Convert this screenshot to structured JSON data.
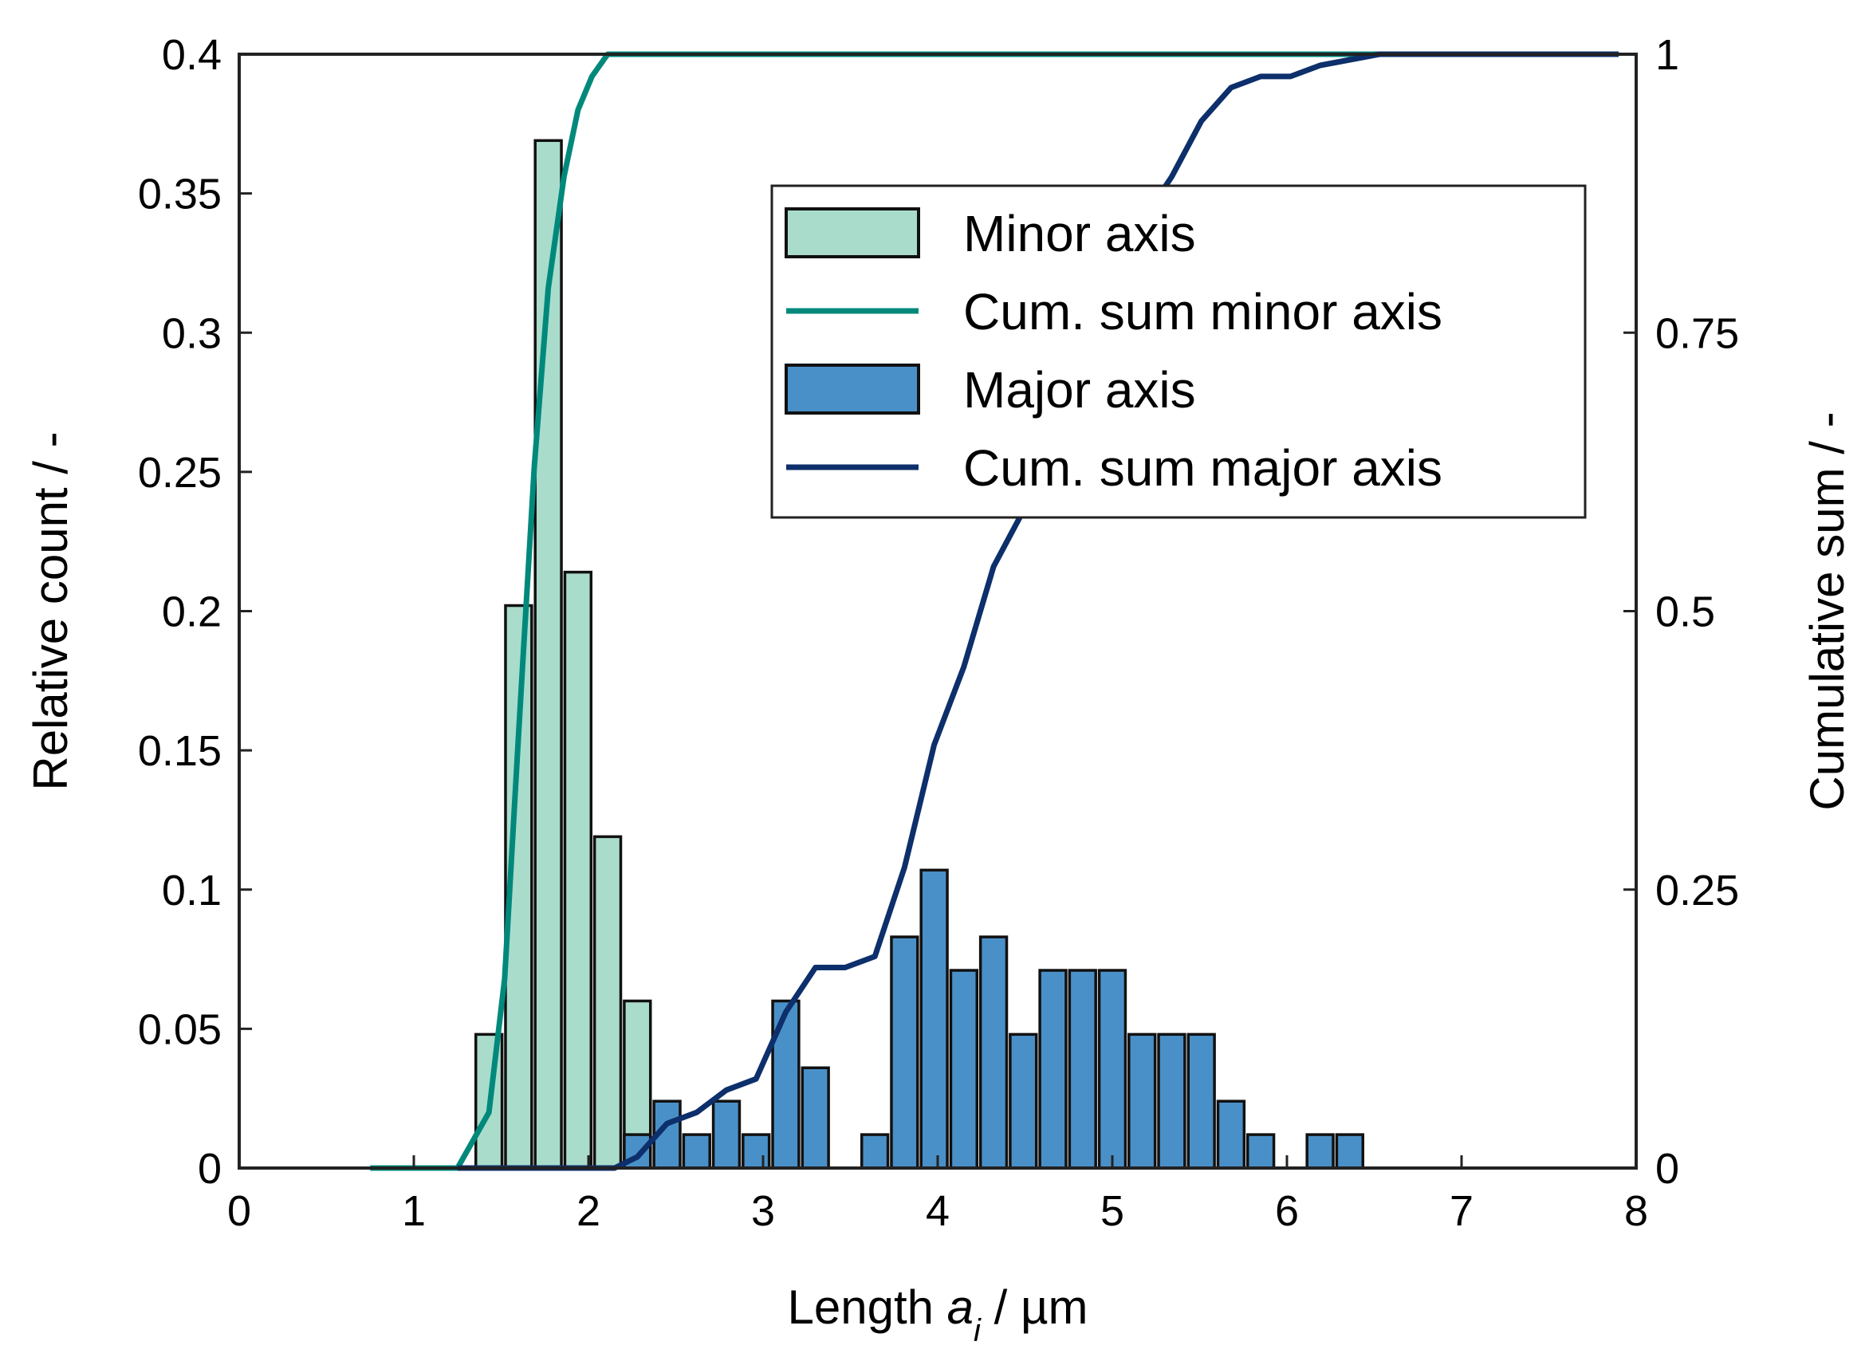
{
  "chart_data": {
    "type": "bar",
    "xlabel": "Length a_i / µm",
    "xlabel_parts": {
      "prefix": "Length ",
      "var": "a",
      "sub": "i",
      "suffix": " / µm"
    },
    "ylabel_left": "Relative count / -",
    "ylabel_right": "Cumulative sum / -",
    "xlim": [
      0,
      8
    ],
    "ylim_left": [
      0,
      0.4
    ],
    "ylim_right": [
      0,
      1
    ],
    "x_ticks": [
      "0",
      "1",
      "2",
      "3",
      "4",
      "5",
      "6",
      "7",
      "8"
    ],
    "y_ticks_left": [
      "0",
      "0.05",
      "0.1",
      "0.15",
      "0.2",
      "0.25",
      "0.3",
      "0.35",
      "0.4"
    ],
    "y_ticks_right": [
      "0",
      "0.25",
      "0.5",
      "0.75",
      "1"
    ],
    "bar_width": 0.15,
    "grid": false,
    "legend_position": "upper-right-inside",
    "series": [
      {
        "name": "Minor axis",
        "kind": "bar",
        "color": "#aadccc",
        "x": [
          1.43,
          1.6,
          1.77,
          1.94,
          2.11,
          2.28
        ],
        "values": [
          0.048,
          0.202,
          0.369,
          0.214,
          0.119,
          0.06
        ]
      },
      {
        "name": "Cum. sum minor axis",
        "kind": "line",
        "color": "#00897b",
        "x": [
          0.75,
          1.0,
          1.25,
          1.43,
          1.52,
          1.6,
          1.69,
          1.77,
          1.86,
          1.94,
          2.02,
          2.11,
          2.2,
          2.28,
          2.5,
          3.0,
          4.0,
          5.0,
          6.0,
          7.0,
          7.9
        ],
        "values": [
          0,
          0,
          0,
          0.05,
          0.17,
          0.39,
          0.63,
          0.79,
          0.89,
          0.95,
          0.98,
          1.0,
          1.0,
          1.0,
          1.0,
          1.0,
          1.0,
          1.0,
          1.0,
          1.0,
          1.0
        ]
      },
      {
        "name": "Major axis",
        "kind": "bar",
        "color": "#4a90c8",
        "x": [
          2.28,
          2.45,
          2.62,
          2.79,
          2.96,
          3.13,
          3.3,
          3.64,
          3.81,
          3.98,
          4.15,
          4.32,
          4.49,
          4.66,
          4.83,
          5.0,
          5.17,
          5.34,
          5.51,
          5.68,
          5.85,
          6.19,
          6.36
        ],
        "values": [
          0.012,
          0.024,
          0.012,
          0.024,
          0.012,
          0.06,
          0.036,
          0.012,
          0.083,
          0.107,
          0.071,
          0.083,
          0.048,
          0.071,
          0.071,
          0.071,
          0.048,
          0.048,
          0.048,
          0.024,
          0.012,
          0.012,
          0.012
        ]
      },
      {
        "name": "Cum. sum major axis",
        "kind": "line",
        "color": "#0d2f6b",
        "x": [
          1.25,
          1.5,
          1.75,
          2.0,
          2.15,
          2.28,
          2.45,
          2.62,
          2.79,
          2.96,
          3.13,
          3.3,
          3.47,
          3.64,
          3.81,
          3.98,
          4.15,
          4.32,
          4.49,
          4.66,
          4.83,
          5.0,
          5.17,
          5.34,
          5.51,
          5.68,
          5.85,
          6.02,
          6.19,
          6.36,
          6.53,
          7.0,
          7.9
        ],
        "values": [
          0,
          0,
          0,
          0,
          0,
          0.01,
          0.04,
          0.05,
          0.07,
          0.08,
          0.14,
          0.18,
          0.18,
          0.19,
          0.27,
          0.38,
          0.45,
          0.54,
          0.59,
          0.66,
          0.73,
          0.8,
          0.85,
          0.89,
          0.94,
          0.97,
          0.98,
          0.98,
          0.99,
          0.995,
          1.0,
          1.0,
          1.0
        ]
      }
    ]
  }
}
